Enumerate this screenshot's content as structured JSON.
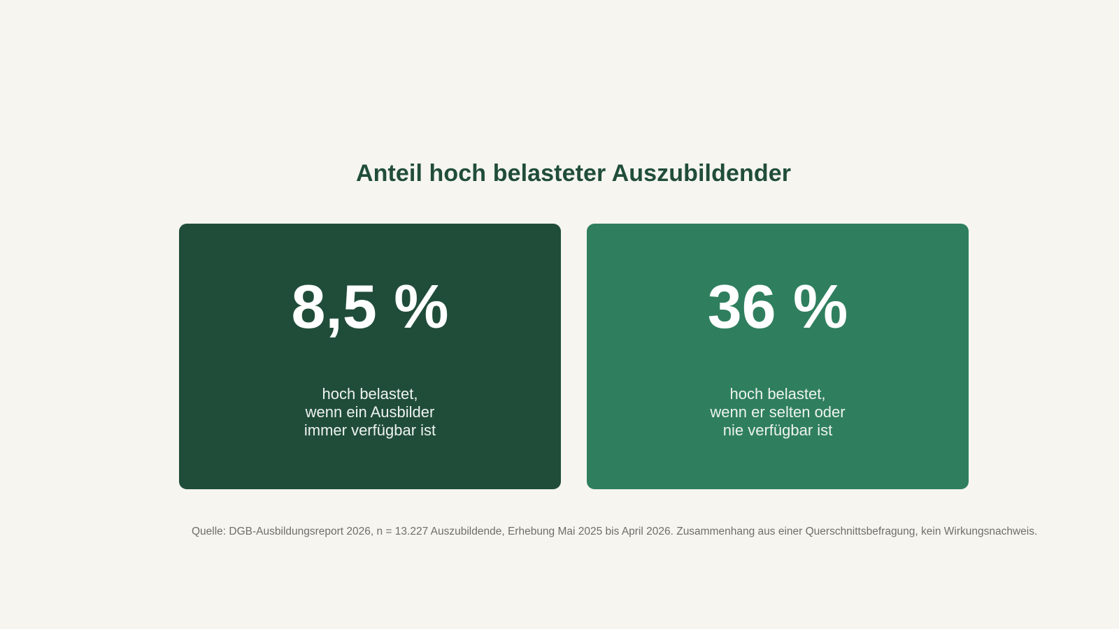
{
  "title": "Anteil hoch belasteter Auszubildender",
  "cards": [
    {
      "value": "8,5 %",
      "description_lines": [
        "hoch belastet,",
        "wenn ein Ausbilder",
        "immer verfügbar ist"
      ],
      "color": "#204d3a"
    },
    {
      "value": "36 %",
      "description_lines": [
        "hoch belastet,",
        "wenn er selten oder",
        "nie verfügbar ist"
      ],
      "color": "#2f7f5e"
    }
  ],
  "source": "Quelle: DGB-Ausbildungsreport 2026, n = 13.227 Auszubildende, Erhebung Mai 2025 bis April 2026. Zusammenhang aus einer Querschnittsbefragung, kein Wirkungsnachweis.",
  "colors": {
    "background": "#f6f5f0",
    "title": "#204d3a",
    "source_text": "#6e6e6a"
  }
}
